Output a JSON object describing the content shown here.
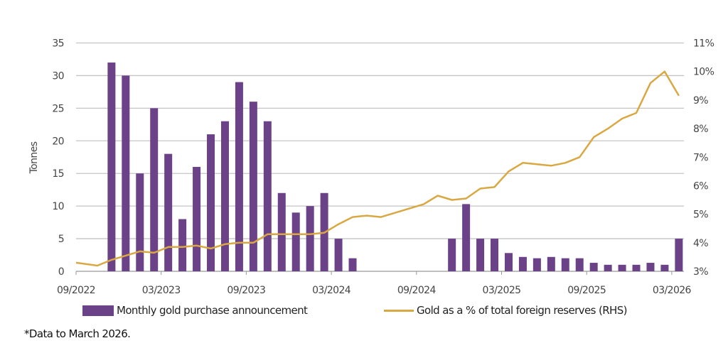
{
  "chart_data": {
    "type": "bar+line",
    "ylabel": "Tonnes",
    "ylim": [
      0,
      35
    ],
    "yticks": [
      "0",
      "5",
      "10",
      "15",
      "20",
      "25",
      "30",
      "35"
    ],
    "y2lim": [
      3,
      11
    ],
    "y2ticks": [
      "3%",
      "4%",
      "5%",
      "6%",
      "7%",
      "8%",
      "9%",
      "10%",
      "11%"
    ],
    "grid": true,
    "legend_position": "bottom",
    "x_tick_labels": [
      "09/2022",
      "03/2023",
      "09/2023",
      "03/2024",
      "09/2024",
      "03/2025",
      "09/2025",
      "03/2026"
    ],
    "categories": [
      "09/2022",
      "10/2022",
      "11/2022",
      "12/2022",
      "01/2023",
      "02/2023",
      "03/2023",
      "04/2023",
      "05/2023",
      "06/2023",
      "07/2023",
      "08/2023",
      "09/2023",
      "10/2023",
      "11/2023",
      "12/2023",
      "01/2024",
      "02/2024",
      "03/2024",
      "04/2024",
      "05/2024",
      "06/2024",
      "07/2024",
      "08/2024",
      "09/2024",
      "10/2024",
      "11/2024",
      "12/2024",
      "01/2025",
      "02/2025",
      "03/2025",
      "04/2025",
      "05/2025",
      "06/2025",
      "07/2025",
      "08/2025",
      "09/2025",
      "10/2025",
      "11/2025",
      "12/2025",
      "01/2026",
      "02/2026",
      "03/2026"
    ],
    "series": [
      {
        "name": "Monthly gold purchase announcement",
        "type": "bar",
        "axis": "left",
        "color": "#6b4188",
        "values": [
          0,
          0,
          32,
          30,
          15,
          25,
          18,
          8,
          16,
          21,
          23,
          29,
          26,
          23,
          12,
          9,
          10,
          12,
          5,
          2,
          0,
          0,
          0,
          0,
          0,
          0,
          5,
          10.3,
          5,
          5,
          2.8,
          2.2,
          2,
          2.2,
          2,
          2,
          1.3,
          1,
          1,
          1,
          1.3,
          1,
          5
        ]
      },
      {
        "name": "Gold as a % of total foreign reserves (RHS)",
        "type": "line",
        "axis": "right",
        "color": "#d9a842",
        "values": [
          3.3,
          3.2,
          3.4,
          3.55,
          3.7,
          3.65,
          3.85,
          3.85,
          3.9,
          3.8,
          3.95,
          4.0,
          4.0,
          4.3,
          4.3,
          4.3,
          4.3,
          4.35,
          4.65,
          4.9,
          4.95,
          4.9,
          5.05,
          5.2,
          5.35,
          5.65,
          5.5,
          5.55,
          5.9,
          5.95,
          6.5,
          6.8,
          6.75,
          6.7,
          6.8,
          7.0,
          7.7,
          8.0,
          8.35,
          8.55,
          9.6,
          10.0,
          9.15
        ]
      }
    ],
    "footnote": "*Data to March 2026."
  }
}
